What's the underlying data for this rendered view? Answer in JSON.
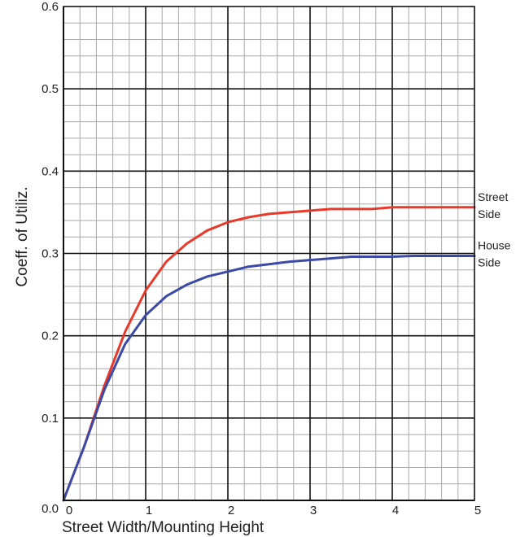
{
  "chart_data": {
    "type": "line",
    "title": "",
    "xlabel": "Street Width/Mounting Height",
    "ylabel": "Coeff. of Utiliz.",
    "xlim": [
      0,
      5
    ],
    "ylim": [
      0,
      0.6
    ],
    "grid": true,
    "x_ticks": [
      "0",
      "1",
      "2",
      "3",
      "4",
      "5"
    ],
    "y_ticks": [
      "0.0",
      "0.1",
      "0.2",
      "0.3",
      "0.4",
      "0.5",
      "0.6"
    ],
    "series": [
      {
        "name_lines": [
          "Street",
          "Side"
        ],
        "color": "#e8392a",
        "x": [
          0,
          0.25,
          0.5,
          0.75,
          1.0,
          1.25,
          1.5,
          1.75,
          2.0,
          2.25,
          2.5,
          2.75,
          3.0,
          3.25,
          3.5,
          3.75,
          4.0,
          4.25,
          4.5,
          4.75,
          5.0
        ],
        "y": [
          0,
          0.065,
          0.14,
          0.205,
          0.255,
          0.29,
          0.312,
          0.328,
          0.338,
          0.344,
          0.348,
          0.35,
          0.352,
          0.354,
          0.354,
          0.354,
          0.356,
          0.356,
          0.356,
          0.356,
          0.356
        ]
      },
      {
        "name_lines": [
          "House",
          "Side"
        ],
        "color": "#3b4aa8",
        "x": [
          0,
          0.25,
          0.5,
          0.75,
          1.0,
          1.25,
          1.5,
          1.75,
          2.0,
          2.25,
          2.5,
          2.75,
          3.0,
          3.25,
          3.5,
          3.75,
          4.0,
          4.25,
          4.5,
          4.75,
          5.0
        ],
        "y": [
          0,
          0.065,
          0.135,
          0.19,
          0.225,
          0.248,
          0.262,
          0.272,
          0.278,
          0.284,
          0.287,
          0.29,
          0.292,
          0.294,
          0.296,
          0.296,
          0.296,
          0.297,
          0.297,
          0.297,
          0.297
        ]
      }
    ]
  }
}
